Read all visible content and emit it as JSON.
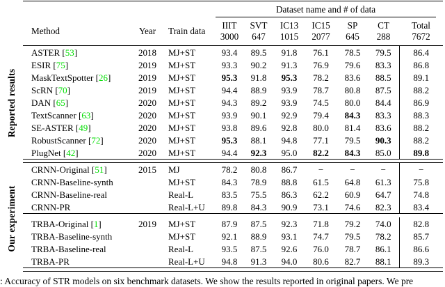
{
  "caption": ": Accuracy of STR models on six benchmark datasets. We show the results reported in original papers. We pre",
  "colors": {
    "citation_green": "#00dd00",
    "rule_black": "#000000"
  },
  "table": {
    "spanner": "Dataset name and # of data",
    "headers": [
      "Method",
      "Year",
      "Train data"
    ],
    "dataset_headers": [
      {
        "name": "IIIT",
        "count": "3000"
      },
      {
        "name": "SVT",
        "count": "647"
      },
      {
        "name": "IC13",
        "count": "1015"
      },
      {
        "name": "IC15",
        "count": "2077"
      },
      {
        "name": "SP",
        "count": "645"
      },
      {
        "name": "CT",
        "count": "288"
      },
      {
        "name": "Total",
        "count": "7672"
      }
    ],
    "groups": [
      {
        "label": "Reported results",
        "blocks": [
          {
            "rows": [
              {
                "method": "ASTER",
                "cite": "53",
                "year": "2018",
                "train": "MJ+ST",
                "values": [
                  "93.4",
                  "89.5",
                  "91.8",
                  "76.1",
                  "78.5",
                  "79.5",
                  "86.4"
                ],
                "bold": []
              },
              {
                "method": "ESIR",
                "cite": "75",
                "year": "2019",
                "train": "MJ+ST",
                "values": [
                  "93.3",
                  "90.2",
                  "91.3",
                  "76.9",
                  "79.6",
                  "83.3",
                  "86.8"
                ],
                "bold": []
              },
              {
                "method": "MaskTextSpotter",
                "cite": "26",
                "year": "2019",
                "train": "MJ+ST",
                "values": [
                  "95.3",
                  "91.8",
                  "95.3",
                  "78.2",
                  "83.6",
                  "88.5",
                  "89.1"
                ],
                "bold": [
                  0,
                  2
                ]
              },
              {
                "method": "ScRN",
                "cite": "70",
                "year": "2019",
                "train": "MJ+ST",
                "values": [
                  "94.4",
                  "88.9",
                  "93.9",
                  "78.7",
                  "80.8",
                  "87.5",
                  "88.2"
                ],
                "bold": []
              },
              {
                "method": "DAN",
                "cite": "65",
                "year": "2020",
                "train": "MJ+ST",
                "values": [
                  "94.3",
                  "89.2",
                  "93.9",
                  "74.5",
                  "80.0",
                  "84.4",
                  "86.9"
                ],
                "bold": []
              },
              {
                "method": "TextScanner",
                "cite": "63",
                "year": "2020",
                "train": "MJ+ST",
                "values": [
                  "93.9",
                  "90.1",
                  "92.9",
                  "79.4",
                  "84.3",
                  "83.3",
                  "88.3"
                ],
                "bold": [
                  4
                ]
              },
              {
                "method": "SE-ASTER",
                "cite": "49",
                "year": "2020",
                "train": "MJ+ST",
                "values": [
                  "93.8",
                  "89.6",
                  "92.8",
                  "80.0",
                  "81.4",
                  "83.6",
                  "88.2"
                ],
                "bold": []
              },
              {
                "method": "RobustScanner",
                "cite": "72",
                "year": "2020",
                "train": "MJ+ST",
                "values": [
                  "95.3",
                  "88.1",
                  "94.8",
                  "77.1",
                  "79.5",
                  "90.3",
                  "88.2"
                ],
                "bold": [
                  0,
                  5
                ]
              },
              {
                "method": "PlugNet",
                "cite": "42",
                "year": "2020",
                "train": "MJ+ST",
                "values": [
                  "94.4",
                  "92.3",
                  "95.0",
                  "82.2",
                  "84.3",
                  "85.0",
                  "89.8"
                ],
                "bold": [
                  1,
                  3,
                  4,
                  6
                ]
              }
            ]
          }
        ]
      },
      {
        "label": "Our experiment",
        "blocks": [
          {
            "rows": [
              {
                "method": "CRNN-Original",
                "cite": "51",
                "year": "2015",
                "train": "MJ",
                "values": [
                  "78.2",
                  "80.8",
                  "86.7",
                  "−",
                  "−",
                  "−",
                  "−"
                ],
                "bold": []
              },
              {
                "method": "CRNN-Baseline-synth",
                "cite": "",
                "year": "",
                "train": "MJ+ST",
                "values": [
                  "84.3",
                  "78.9",
                  "88.8",
                  "61.5",
                  "64.8",
                  "61.3",
                  "75.8"
                ],
                "bold": []
              },
              {
                "method": "CRNN-Baseline-real",
                "cite": "",
                "year": "",
                "train": "Real-L",
                "values": [
                  "83.5",
                  "75.5",
                  "86.3",
                  "62.2",
                  "60.9",
                  "64.7",
                  "74.8"
                ],
                "bold": []
              },
              {
                "method": "CRNN-PR",
                "cite": "",
                "year": "",
                "train": "Real-L+U",
                "values": [
                  "89.8",
                  "84.3",
                  "90.9",
                  "73.1",
                  "74.6",
                  "82.3",
                  "83.4"
                ],
                "bold": []
              }
            ]
          },
          {
            "rows": [
              {
                "method": "TRBA-Original",
                "cite": "1",
                "year": "2019",
                "train": "MJ+ST",
                "values": [
                  "87.9",
                  "87.5",
                  "92.3",
                  "71.8",
                  "79.2",
                  "74.0",
                  "82.8"
                ],
                "bold": []
              },
              {
                "method": "TRBA-Baseline-synth",
                "cite": "",
                "year": "",
                "train": "MJ+ST",
                "values": [
                  "92.1",
                  "88.9",
                  "93.1",
                  "74.7",
                  "79.5",
                  "78.2",
                  "85.7"
                ],
                "bold": []
              },
              {
                "method": "TRBA-Baseline-real",
                "cite": "",
                "year": "",
                "train": "Real-L",
                "values": [
                  "93.5",
                  "87.5",
                  "92.6",
                  "76.0",
                  "78.7",
                  "86.1",
                  "86.6"
                ],
                "bold": []
              },
              {
                "method": "TRBA-PR",
                "cite": "",
                "year": "",
                "train": "Real-L+U",
                "values": [
                  "94.8",
                  "91.3",
                  "94.0",
                  "80.6",
                  "82.7",
                  "88.1",
                  "89.3"
                ],
                "bold": []
              }
            ]
          }
        ]
      }
    ]
  }
}
